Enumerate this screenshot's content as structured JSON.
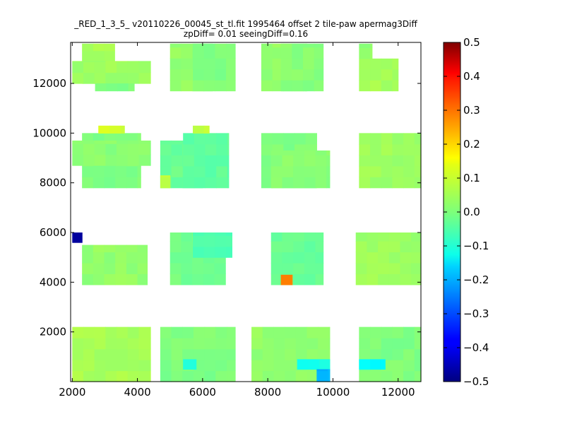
{
  "chart_data": {
    "type": "heatmap",
    "title": "_RED_1_3_5_ v20110226_00045_st_tl.fit 1995464 offset 2 tile-paw apermag3Diff",
    "subtitle": "zpDiff= 0.01 seeingDiff=0.16",
    "xlabel": "",
    "ylabel": "",
    "xlim": [
      1950,
      12700
    ],
    "ylim": [
      0,
      13650
    ],
    "x_ticks": [
      "2000",
      "4000",
      "6000",
      "8000",
      "10000",
      "12000"
    ],
    "y_ticks": [
      "2000",
      "4000",
      "6000",
      "8000",
      "10000",
      "12000"
    ],
    "cell_size": [
      340,
      440
    ],
    "colormap": "jet",
    "colorbar": {
      "range": [
        -0.5,
        0.5
      ],
      "ticks": [
        "0.5",
        "0.4",
        "0.3",
        "0.2",
        "0.1",
        "0.0",
        "−0.1",
        "−0.2",
        "−0.3",
        "−0.4",
        "−0.5"
      ]
    },
    "grid": false,
    "regions": [
      {
        "x": [
          2300,
          3300
        ],
        "y": [
          12000,
          13600
        ],
        "value": 0.04
      },
      {
        "x": [
          2000,
          4400
        ],
        "y": [
          12000,
          12900
        ],
        "value": 0.03
      },
      {
        "x": [
          2700,
          3900
        ],
        "y": [
          11700,
          12000
        ],
        "value": 0.0
      },
      {
        "x": [
          5000,
          6300
        ],
        "y": [
          11700,
          13600
        ],
        "value": 0.02
      },
      {
        "x": [
          5700,
          7000
        ],
        "y": [
          11700,
          13600
        ],
        "value": 0.0
      },
      {
        "x": [
          7800,
          9200
        ],
        "y": [
          11700,
          13600
        ],
        "value": 0.02
      },
      {
        "x": [
          8400,
          9700
        ],
        "y": [
          11700,
          13600
        ],
        "value": 0.01
      },
      {
        "x": [
          10800,
          12000
        ],
        "y": [
          11700,
          13000
        ],
        "value": 0.04
      },
      {
        "x": [
          10800,
          11200
        ],
        "y": [
          13000,
          13600
        ],
        "value": 0.02
      },
      {
        "x": [
          2300,
          4100
        ],
        "y": [
          7800,
          10000
        ],
        "value": 0.0
      },
      {
        "x": [
          2000,
          4400
        ],
        "y": [
          8700,
          9700
        ],
        "value": 0.01
      },
      {
        "x": [
          2800,
          3600
        ],
        "y": [
          10000,
          10300
        ],
        "value": 0.08
      },
      {
        "x": [
          4700,
          6000
        ],
        "y": [
          7800,
          9700
        ],
        "value": -0.02
      },
      {
        "x": [
          5400,
          6800
        ],
        "y": [
          7800,
          10000
        ],
        "value": -0.03
      },
      {
        "x": [
          5700,
          6200
        ],
        "y": [
          10000,
          10300
        ],
        "value": 0.07
      },
      {
        "x": [
          7800,
          9500
        ],
        "y": [
          7800,
          10000
        ],
        "value": 0.0
      },
      {
        "x": [
          8100,
          9900
        ],
        "y": [
          7800,
          9300
        ],
        "value": 0.01
      },
      {
        "x": [
          10800,
          12700
        ],
        "y": [
          7800,
          10000
        ],
        "value": 0.03
      },
      {
        "x": [
          4700,
          5000
        ],
        "y": [
          7800,
          8300
        ],
        "value": 0.07
      },
      {
        "x": [
          2000,
          2300
        ],
        "y": [
          5600,
          6000
        ],
        "value": -0.47
      },
      {
        "x": [
          2300,
          4300
        ],
        "y": [
          3900,
          5500
        ],
        "value": 0.02
      },
      {
        "x": [
          5000,
          6700
        ],
        "y": [
          3900,
          6000
        ],
        "value": -0.01
      },
      {
        "x": [
          5700,
          6900
        ],
        "y": [
          5000,
          6000
        ],
        "value": -0.05
      },
      {
        "x": [
          8100,
          9700
        ],
        "y": [
          3900,
          6000
        ],
        "value": -0.02
      },
      {
        "x": [
          8400,
          8750
        ],
        "y": [
          3900,
          4300
        ],
        "value": 0.25
      },
      {
        "x": [
          10700,
          12700
        ],
        "y": [
          3900,
          6000
        ],
        "value": 0.03
      },
      {
        "x": [
          2000,
          4400
        ],
        "y": [
          0,
          2200
        ],
        "value": 0.04
      },
      {
        "x": [
          4700,
          7000
        ],
        "y": [
          0,
          2200
        ],
        "value": 0.0
      },
      {
        "x": [
          5400,
          5800
        ],
        "y": [
          500,
          900
        ],
        "value": -0.1
      },
      {
        "x": [
          7500,
          9900
        ],
        "y": [
          0,
          2200
        ],
        "value": 0.02
      },
      {
        "x": [
          8900,
          9900
        ],
        "y": [
          500,
          900
        ],
        "value": -0.1
      },
      {
        "x": [
          9500,
          9900
        ],
        "y": [
          0,
          500
        ],
        "value": -0.2
      },
      {
        "x": [
          10800,
          12700
        ],
        "y": [
          0,
          2200
        ],
        "value": 0.0
      },
      {
        "x": [
          10800,
          11600
        ],
        "y": [
          500,
          900
        ],
        "value": -0.13
      }
    ]
  }
}
